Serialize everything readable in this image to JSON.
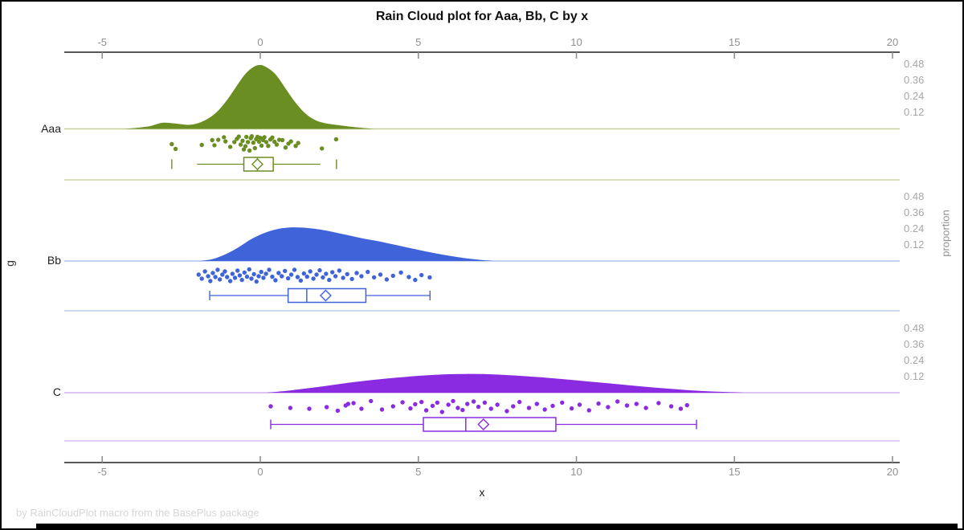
{
  "figure": {
    "footer": "by RainCloudPlot macro from the BasePlus package"
  },
  "chart_data": {
    "type": "raincloud",
    "title": "Rain Cloud plot for Aaa, Bb, C by x",
    "xlabel": "x",
    "ylabel": "g",
    "y2label": "proportion",
    "x_ticks": [
      -5,
      0,
      5,
      10,
      15,
      20
    ],
    "x_axis_range": [
      -6.2,
      20.3
    ],
    "proportion_ticks": [
      0.48,
      0.36,
      0.24,
      0.12
    ],
    "axis_colors": {
      "line": "#404040",
      "tick": "#8f8f8f",
      "tick_label": "#8f8f8f",
      "right_label": "#a6a6a6"
    },
    "groups": [
      {
        "label": "Aaa",
        "color": "#6b8e23",
        "line_color": "#c2cf97",
        "density": [
          [
            -4.3,
            0
          ],
          [
            -3.9,
            0.008
          ],
          [
            -3.5,
            0.02
          ],
          [
            -3.1,
            0.045
          ],
          [
            -2.7,
            0.04
          ],
          [
            -2.3,
            0.03
          ],
          [
            -2.0,
            0.04
          ],
          [
            -1.7,
            0.07
          ],
          [
            -1.4,
            0.12
          ],
          [
            -1.1,
            0.2
          ],
          [
            -0.8,
            0.3
          ],
          [
            -0.5,
            0.4
          ],
          [
            -0.25,
            0.455
          ],
          [
            0,
            0.475
          ],
          [
            0.25,
            0.45
          ],
          [
            0.5,
            0.4
          ],
          [
            0.8,
            0.3
          ],
          [
            1.1,
            0.2
          ],
          [
            1.4,
            0.12
          ],
          [
            1.7,
            0.07
          ],
          [
            2.0,
            0.045
          ],
          [
            2.4,
            0.03
          ],
          [
            2.8,
            0.018
          ],
          [
            3.2,
            0.008
          ],
          [
            3.6,
            0
          ]
        ],
        "points": [
          [
            -2.8,
            0.55
          ],
          [
            -2.68,
            0.85
          ],
          [
            -1.85,
            0.6
          ],
          [
            -1.52,
            0.3
          ],
          [
            -1.45,
            0.62
          ],
          [
            -1.33,
            0.28
          ],
          [
            -1.15,
            0.12
          ],
          [
            -1.1,
            0.38
          ],
          [
            -0.95,
            0.72
          ],
          [
            -0.82,
            0.42
          ],
          [
            -0.74,
            0.22
          ],
          [
            -0.68,
            0.08
          ],
          [
            -0.62,
            0.58
          ],
          [
            -0.56,
            0.34
          ],
          [
            -0.52,
            0.88
          ],
          [
            -0.47,
            0.68
          ],
          [
            -0.44,
            0.1
          ],
          [
            -0.39,
            0.42
          ],
          [
            -0.34,
            0.95
          ],
          [
            -0.3,
            0.18
          ],
          [
            -0.27,
            0.06
          ],
          [
            -0.22,
            0.46
          ],
          [
            -0.17,
            0.8
          ],
          [
            -0.13,
            0.24
          ],
          [
            -0.09,
            0.1
          ],
          [
            -0.04,
            0.4
          ],
          [
            0.0,
            0.16
          ],
          [
            0.04,
            0.64
          ],
          [
            0.09,
            0.3
          ],
          [
            0.13,
            0.12
          ],
          [
            0.19,
            0.42
          ],
          [
            0.25,
            0.66
          ],
          [
            0.32,
            0.26
          ],
          [
            0.38,
            0.14
          ],
          [
            0.45,
            0.4
          ],
          [
            0.52,
            0.58
          ],
          [
            0.6,
            0.28
          ],
          [
            0.7,
            0.3
          ],
          [
            0.8,
            0.76
          ],
          [
            0.89,
            0.52
          ],
          [
            0.97,
            0.38
          ],
          [
            1.12,
            0.66
          ],
          [
            1.2,
            0.48
          ],
          [
            1.95,
            0.82
          ],
          [
            2.4,
            0.25
          ]
        ],
        "box": {
          "cap_lo": -2.8,
          "whisker_lo": -2.0,
          "q1": -0.52,
          "median": -0.09,
          "q3": 0.41,
          "whisker_hi": 1.9,
          "cap_hi": 2.41,
          "mean": -0.09
        }
      },
      {
        "label": "Bb",
        "color": "#3f63d9",
        "line_color": "#b0c3ec",
        "density": [
          [
            -1.9,
            0
          ],
          [
            -1.5,
            0.015
          ],
          [
            -1.1,
            0.05
          ],
          [
            -0.7,
            0.1
          ],
          [
            -0.3,
            0.16
          ],
          [
            0.1,
            0.205
          ],
          [
            0.5,
            0.235
          ],
          [
            0.9,
            0.248
          ],
          [
            1.3,
            0.248
          ],
          [
            1.7,
            0.24
          ],
          [
            2.1,
            0.225
          ],
          [
            2.5,
            0.205
          ],
          [
            2.9,
            0.185
          ],
          [
            3.3,
            0.165
          ],
          [
            3.7,
            0.148
          ],
          [
            4.1,
            0.128
          ],
          [
            4.5,
            0.108
          ],
          [
            4.9,
            0.088
          ],
          [
            5.3,
            0.068
          ],
          [
            5.7,
            0.05
          ],
          [
            6.1,
            0.034
          ],
          [
            6.5,
            0.02
          ],
          [
            6.9,
            0.01
          ],
          [
            7.4,
            0
          ]
        ],
        "points": [
          [
            -1.95,
            0.45
          ],
          [
            -1.85,
            0.7
          ],
          [
            -1.75,
            0.25
          ],
          [
            -1.65,
            0.55
          ],
          [
            -1.58,
            0.85
          ],
          [
            -1.5,
            0.35
          ],
          [
            -1.42,
            0.6
          ],
          [
            -1.35,
            0.15
          ],
          [
            -1.28,
            0.75
          ],
          [
            -1.2,
            0.45
          ],
          [
            -1.12,
            0.25
          ],
          [
            -1.05,
            0.6
          ],
          [
            -0.95,
            0.85
          ],
          [
            -0.88,
            0.4
          ],
          [
            -0.8,
            0.65
          ],
          [
            -0.72,
            0.2
          ],
          [
            -0.65,
            0.5
          ],
          [
            -0.58,
            0.78
          ],
          [
            -0.5,
            0.32
          ],
          [
            -0.42,
            0.58
          ],
          [
            -0.35,
            0.12
          ],
          [
            -0.28,
            0.7
          ],
          [
            -0.2,
            0.42
          ],
          [
            -0.12,
            0.88
          ],
          [
            -0.05,
            0.55
          ],
          [
            0.03,
            0.28
          ],
          [
            0.1,
            0.65
          ],
          [
            0.18,
            0.4
          ],
          [
            0.28,
            0.15
          ],
          [
            0.38,
            0.58
          ],
          [
            0.48,
            0.8
          ],
          [
            0.58,
            0.35
          ],
          [
            0.68,
            0.55
          ],
          [
            0.78,
            0.22
          ],
          [
            0.88,
            0.68
          ],
          [
            0.98,
            0.45
          ],
          [
            1.08,
            0.15
          ],
          [
            1.18,
            0.6
          ],
          [
            1.28,
            0.82
          ],
          [
            1.38,
            0.38
          ],
          [
            1.48,
            0.58
          ],
          [
            1.58,
            0.25
          ],
          [
            1.68,
            0.7
          ],
          [
            1.78,
            0.45
          ],
          [
            1.88,
            0.18
          ],
          [
            1.98,
            0.62
          ],
          [
            2.08,
            0.4
          ],
          [
            2.18,
            0.78
          ],
          [
            2.28,
            0.3
          ],
          [
            2.38,
            0.55
          ],
          [
            2.5,
            0.2
          ],
          [
            2.62,
            0.65
          ],
          [
            2.75,
            0.42
          ],
          [
            2.9,
            0.72
          ],
          [
            3.05,
            0.35
          ],
          [
            3.2,
            0.55
          ],
          [
            3.4,
            0.28
          ],
          [
            3.6,
            0.62
          ],
          [
            3.8,
            0.45
          ],
          [
            4.0,
            0.75
          ],
          [
            4.2,
            0.52
          ],
          [
            4.45,
            0.32
          ],
          [
            4.7,
            0.6
          ],
          [
            4.9,
            0.78
          ],
          [
            5.1,
            0.48
          ],
          [
            5.36,
            0.62
          ]
        ],
        "box": {
          "cap_lo": -1.6,
          "whisker_lo": -1.6,
          "q1": 0.88,
          "median": 1.47,
          "q3": 3.34,
          "whisker_hi": 5.37,
          "cap_hi": 5.37,
          "mean": 2.07
        }
      },
      {
        "label": "C",
        "color": "#8a2be2",
        "line_color": "#d2aef1",
        "density": [
          [
            0.2,
            0
          ],
          [
            1,
            0.018
          ],
          [
            2,
            0.048
          ],
          [
            3,
            0.08
          ],
          [
            4,
            0.105
          ],
          [
            5,
            0.125
          ],
          [
            5.8,
            0.136
          ],
          [
            6.5,
            0.139
          ],
          [
            7.2,
            0.137
          ],
          [
            8,
            0.128
          ],
          [
            9,
            0.112
          ],
          [
            10,
            0.092
          ],
          [
            11,
            0.07
          ],
          [
            12,
            0.048
          ],
          [
            13,
            0.028
          ],
          [
            14,
            0.012
          ],
          [
            15,
            0.003
          ],
          [
            15.3,
            0
          ]
        ],
        "points": [
          [
            0.33,
            0.45
          ],
          [
            0.95,
            0.55
          ],
          [
            1.55,
            0.6
          ],
          [
            2.1,
            0.5
          ],
          [
            2.45,
            0.72
          ],
          [
            2.7,
            0.4
          ],
          [
            2.78,
            0.3
          ],
          [
            2.95,
            0.25
          ],
          [
            3.2,
            0.6
          ],
          [
            3.5,
            0.12
          ],
          [
            3.85,
            0.65
          ],
          [
            4.2,
            0.45
          ],
          [
            4.5,
            0.2
          ],
          [
            4.75,
            0.58
          ],
          [
            4.9,
            0.32
          ],
          [
            5.1,
            0.18
          ],
          [
            5.25,
            0.7
          ],
          [
            5.45,
            0.42
          ],
          [
            5.6,
            0.22
          ],
          [
            5.75,
            0.8
          ],
          [
            5.95,
            0.35
          ],
          [
            6.1,
            0.12
          ],
          [
            6.25,
            0.55
          ],
          [
            6.4,
            0.68
          ],
          [
            6.55,
            0.3
          ],
          [
            6.75,
            0.15
          ],
          [
            6.9,
            0.48
          ],
          [
            7.1,
            0.22
          ],
          [
            7.3,
            0.6
          ],
          [
            7.5,
            0.35
          ],
          [
            7.8,
            0.75
          ],
          [
            8.0,
            0.45
          ],
          [
            8.2,
            0.18
          ],
          [
            8.5,
            0.55
          ],
          [
            8.75,
            0.3
          ],
          [
            9.0,
            0.65
          ],
          [
            9.25,
            0.42
          ],
          [
            9.55,
            0.22
          ],
          [
            9.85,
            0.58
          ],
          [
            10.1,
            0.35
          ],
          [
            10.4,
            0.7
          ],
          [
            10.7,
            0.28
          ],
          [
            11.0,
            0.5
          ],
          [
            11.3,
            0.15
          ],
          [
            11.6,
            0.4
          ],
          [
            11.9,
            0.3
          ],
          [
            12.2,
            0.55
          ],
          [
            12.6,
            0.25
          ],
          [
            13.0,
            0.45
          ],
          [
            13.3,
            0.6
          ],
          [
            13.5,
            0.38
          ]
        ],
        "box": {
          "cap_lo": 0.33,
          "whisker_lo": 0.33,
          "q1": 5.16,
          "median": 6.5,
          "q3": 9.35,
          "whisker_hi": 13.8,
          "cap_hi": 13.8,
          "mean": 7.06
        }
      }
    ]
  }
}
